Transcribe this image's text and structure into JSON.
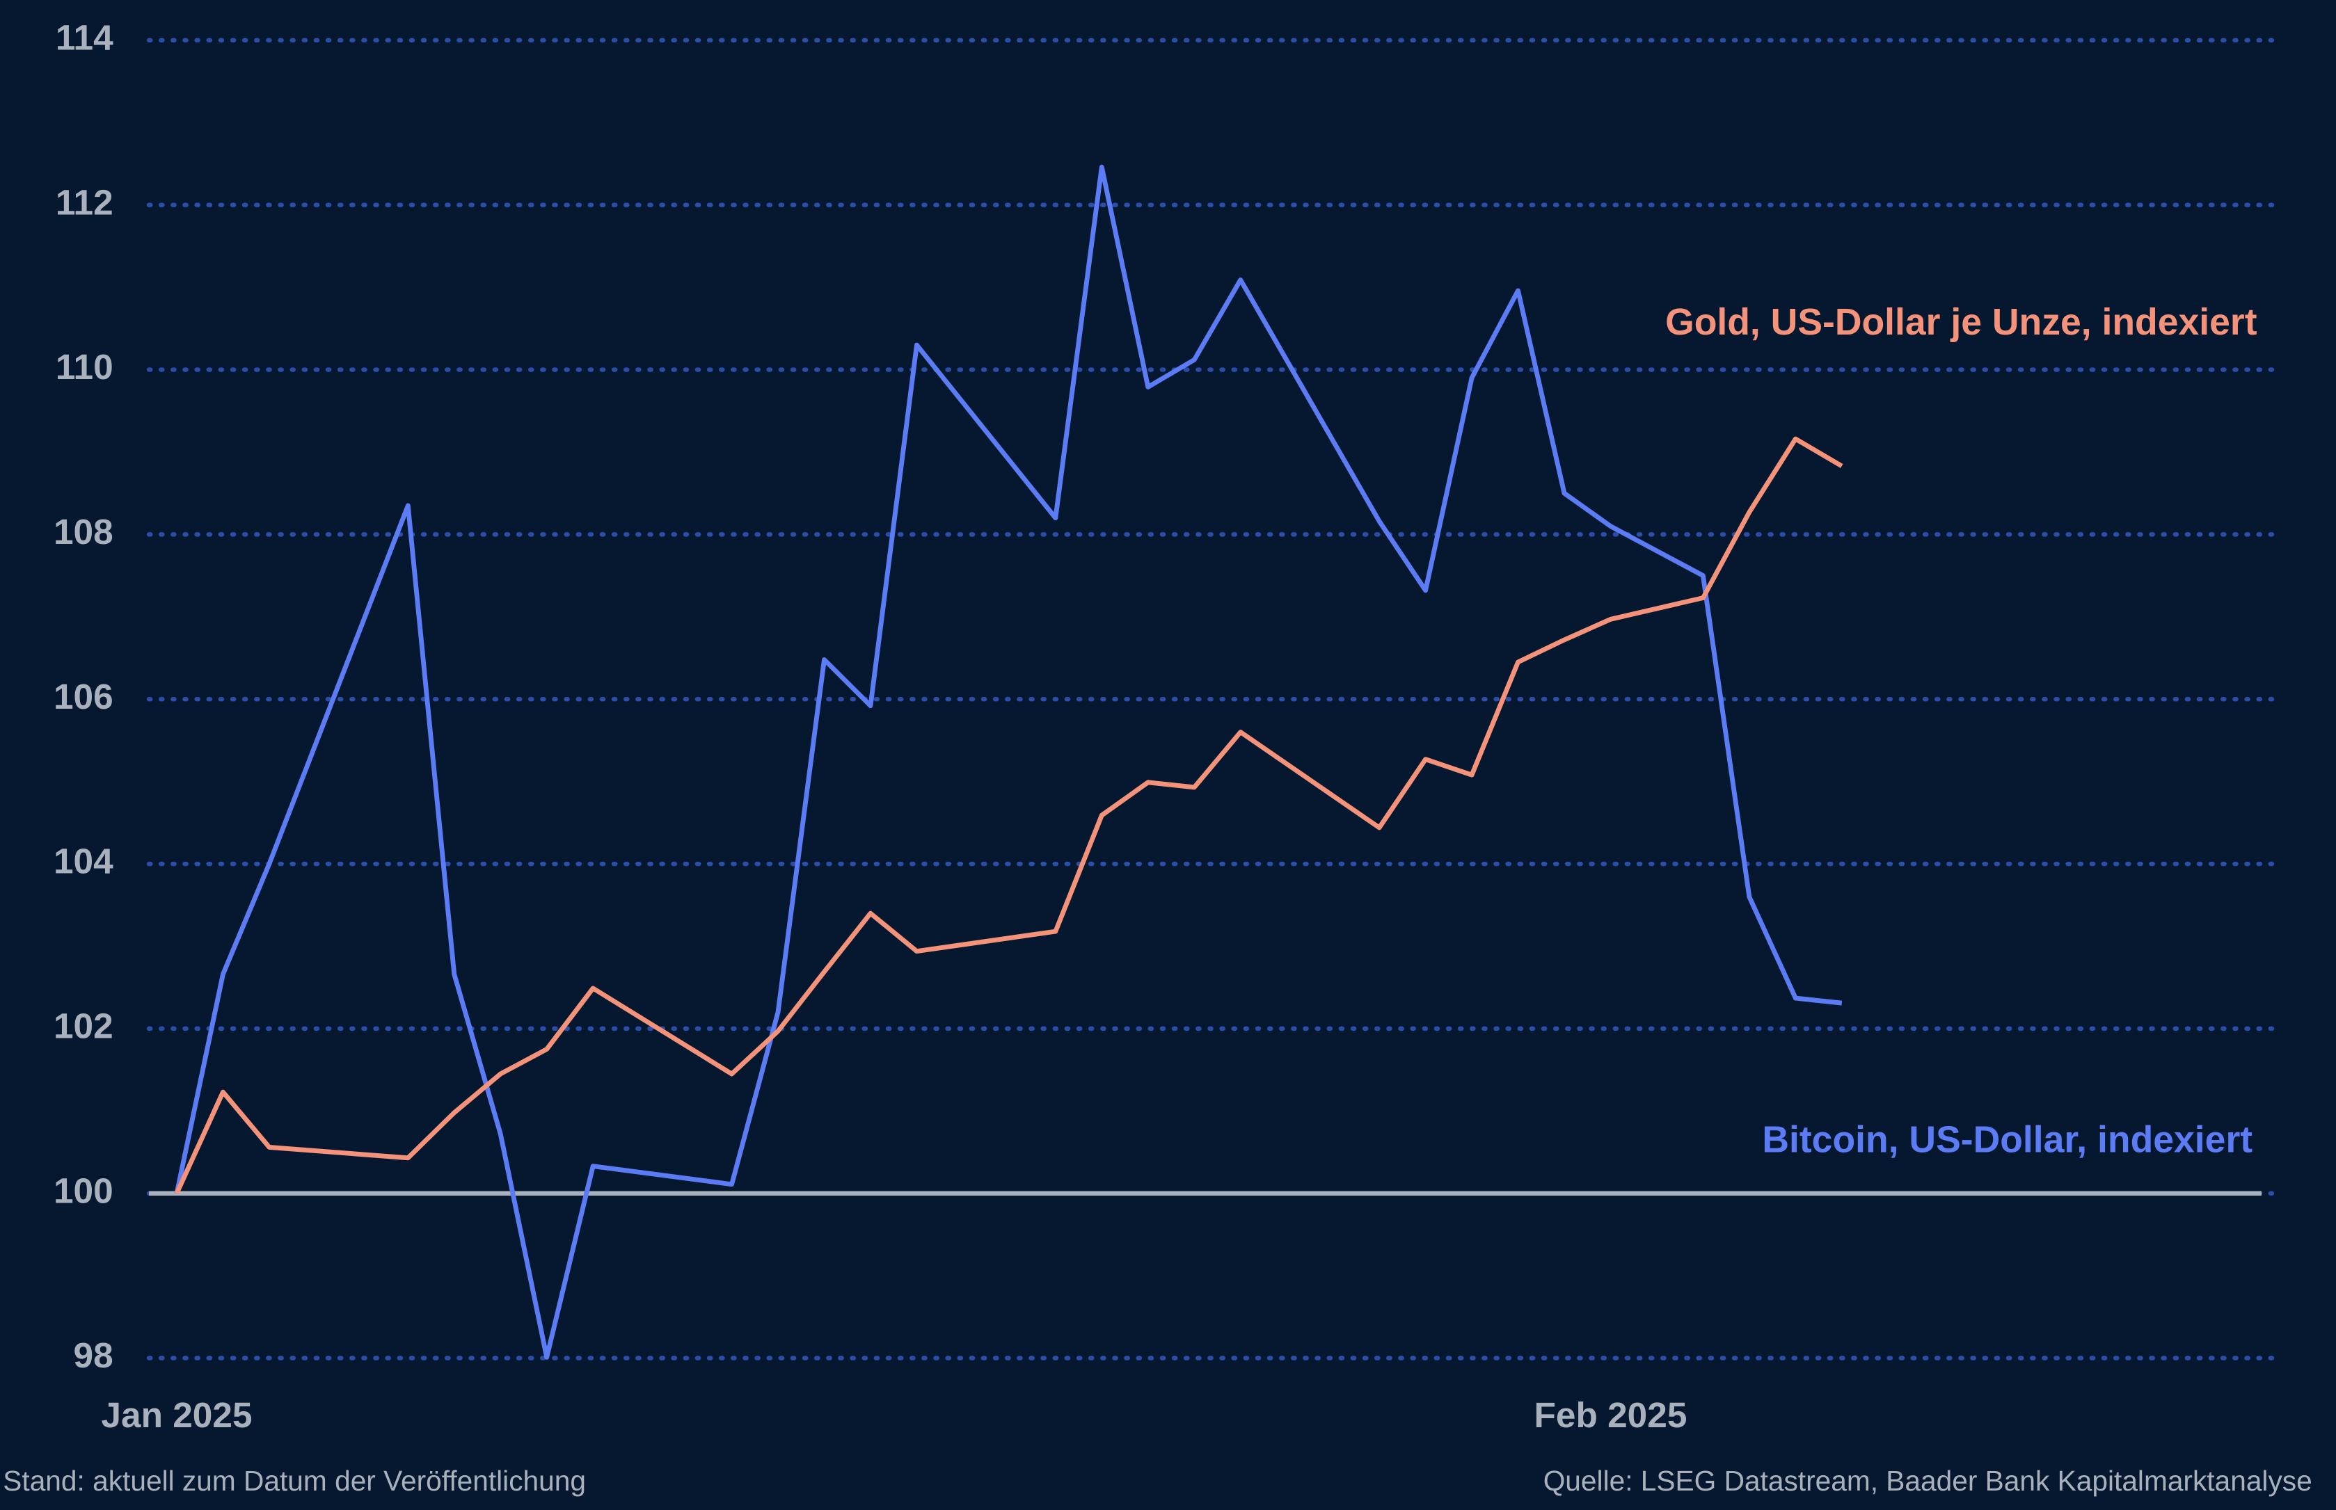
{
  "chart_data": {
    "type": "line",
    "x": [
      0,
      1,
      2,
      5,
      6,
      7,
      8,
      9,
      12,
      13,
      14,
      15,
      16,
      19,
      20,
      21,
      22,
      23,
      26,
      27,
      28,
      29,
      30,
      31,
      33,
      34,
      35,
      36
    ],
    "xlim": [
      -0.6,
      45.3
    ],
    "xticks": [
      {
        "value": 0,
        "label": "Jan 2025"
      },
      {
        "value": 31,
        "label": "Feb 2025"
      }
    ],
    "ylim": [
      98,
      114
    ],
    "yticks": [
      98,
      100,
      102,
      104,
      106,
      108,
      110,
      112,
      114
    ],
    "grid": true,
    "baseline": 100,
    "series": [
      {
        "name": "Bitcoin, US-Dollar, indexiert",
        "color": "#5b7cf5",
        "values": [
          100,
          102.66,
          104.0,
          108.35,
          102.66,
          100.72,
          98.01,
          100.33,
          100.11,
          102.2,
          106.48,
          105.92,
          110.3,
          108.2,
          112.46,
          109.79,
          110.12,
          111.09,
          108.16,
          107.32,
          109.9,
          110.96,
          108.5,
          108.1,
          107.5,
          103.6,
          102.37,
          102.31
        ]
      },
      {
        "name": "Gold, US-Dollar je Unze, indexiert",
        "color": "#f4927a",
        "values": [
          100,
          101.23,
          100.56,
          100.43,
          100.98,
          101.45,
          101.75,
          102.49,
          101.45,
          101.97,
          102.69,
          103.4,
          102.94,
          103.18,
          104.59,
          104.99,
          104.93,
          105.6,
          104.44,
          105.27,
          105.08,
          106.45,
          106.72,
          106.97,
          107.23,
          108.27,
          109.16,
          108.83
        ]
      }
    ],
    "footnote_left": "Stand: aktuell zum Datum der Veröffentlichung",
    "footnote_right": "Quelle: LSEG Datastream, Baader Bank Kapitalmarktanalyse"
  }
}
